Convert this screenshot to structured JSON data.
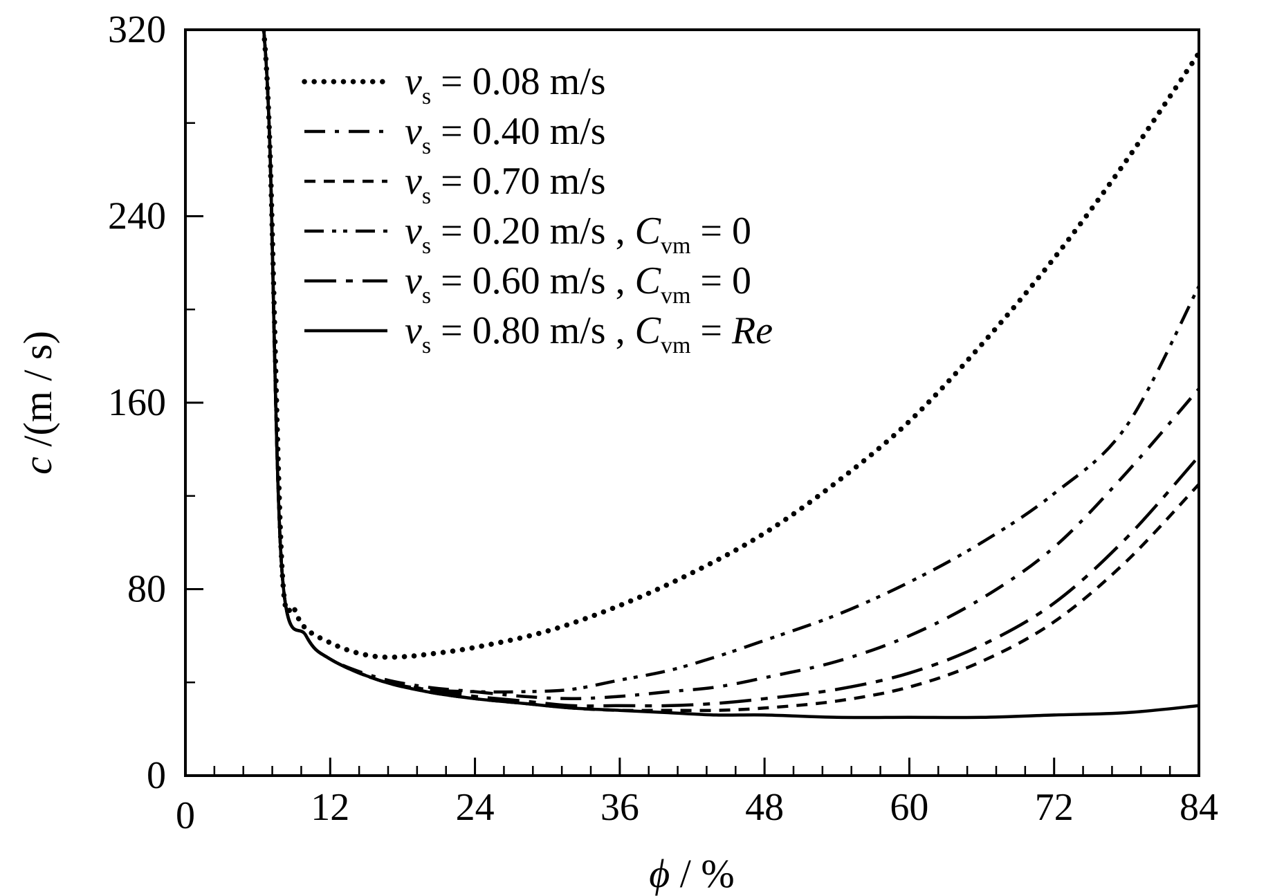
{
  "chart_data": {
    "type": "line",
    "xlabel": {
      "symbol": "ϕ",
      "unit": " / %"
    },
    "ylabel": {
      "symbol": "c",
      "unit": " /(m / s)"
    },
    "xlim": [
      0,
      84
    ],
    "ylim": [
      0,
      320
    ],
    "x_ticks": [
      0,
      12,
      24,
      36,
      48,
      60,
      72,
      84
    ],
    "y_ticks": [
      0,
      80,
      160,
      240,
      320
    ],
    "x_tick_labels": [
      "0",
      "12",
      "24",
      "36",
      "48",
      "60",
      "72",
      "84"
    ],
    "y_tick_labels": [
      "0",
      "80",
      "160",
      "240",
      "320"
    ],
    "x_minor_step": 2.4,
    "y_minor_step": 40,
    "legend_position": "top-left",
    "series": [
      {
        "label": {
          "v": "v",
          "sub": "s",
          "eq": " = 0.08 m/s",
          "extra": ""
        },
        "style": "dotted",
        "points": [
          [
            6.5,
            320
          ],
          [
            7,
            270
          ],
          [
            8,
            90
          ],
          [
            9,
            72
          ],
          [
            10,
            63
          ],
          [
            12,
            57
          ],
          [
            14,
            53
          ],
          [
            16,
            51
          ],
          [
            18,
            51
          ],
          [
            20,
            52
          ],
          [
            24,
            55
          ],
          [
            30,
            62
          ],
          [
            36,
            73
          ],
          [
            42,
            87
          ],
          [
            48,
            104
          ],
          [
            54,
            126
          ],
          [
            60,
            152
          ],
          [
            66,
            185
          ],
          [
            72,
            222
          ],
          [
            78,
            264
          ],
          [
            84,
            310
          ]
        ]
      },
      {
        "label": {
          "v": "v",
          "sub": "s",
          "eq": " = 0.40 m/s",
          "extra": ""
        },
        "style": "dashdot",
        "points": [
          [
            6.5,
            320
          ],
          [
            7,
            270
          ],
          [
            8,
            88
          ],
          [
            10,
            60
          ],
          [
            12,
            50
          ],
          [
            16,
            42
          ],
          [
            20,
            38
          ],
          [
            24,
            36
          ],
          [
            28,
            34
          ],
          [
            32,
            33
          ],
          [
            36,
            34
          ],
          [
            40,
            36
          ],
          [
            44,
            38
          ],
          [
            48,
            42
          ],
          [
            54,
            49
          ],
          [
            60,
            60
          ],
          [
            66,
            76
          ],
          [
            72,
            98
          ],
          [
            78,
            130
          ],
          [
            84,
            166
          ]
        ]
      },
      {
        "label": {
          "v": "v",
          "sub": "s",
          "eq": " = 0.70 m/s",
          "extra": ""
        },
        "style": "dashed",
        "points": [
          [
            6.5,
            320
          ],
          [
            7,
            270
          ],
          [
            8,
            88
          ],
          [
            10,
            60
          ],
          [
            12,
            50
          ],
          [
            16,
            41
          ],
          [
            20,
            36
          ],
          [
            24,
            33
          ],
          [
            28,
            31
          ],
          [
            32,
            29
          ],
          [
            36,
            28
          ],
          [
            40,
            28
          ],
          [
            44,
            28
          ],
          [
            48,
            29
          ],
          [
            54,
            32
          ],
          [
            60,
            38
          ],
          [
            66,
            49
          ],
          [
            72,
            66
          ],
          [
            78,
            92
          ],
          [
            84,
            125
          ]
        ]
      },
      {
        "label": {
          "v": "v",
          "sub": "s",
          "eq": " = 0.20 m/s",
          "extra": " , C",
          "extra_sub": "vm",
          "extra_eq": " = 0",
          "extra_ital": ""
        },
        "style": "dashdotdot",
        "points": [
          [
            6.5,
            320
          ],
          [
            7,
            270
          ],
          [
            8,
            88
          ],
          [
            10,
            60
          ],
          [
            12,
            50
          ],
          [
            16,
            41
          ],
          [
            20,
            37
          ],
          [
            24,
            36
          ],
          [
            28,
            36
          ],
          [
            32,
            37
          ],
          [
            36,
            41
          ],
          [
            40,
            45
          ],
          [
            44,
            51
          ],
          [
            48,
            58
          ],
          [
            54,
            69
          ],
          [
            60,
            83
          ],
          [
            66,
            100
          ],
          [
            72,
            121
          ],
          [
            78,
            150
          ],
          [
            84,
            210
          ]
        ]
      },
      {
        "label": {
          "v": "v",
          "sub": "s",
          "eq": " = 0.60 m/s",
          "extra": " , C",
          "extra_sub": "vm",
          "extra_eq": " = 0",
          "extra_ital": ""
        },
        "style": "longdashdot",
        "points": [
          [
            6.5,
            320
          ],
          [
            7,
            270
          ],
          [
            8,
            88
          ],
          [
            10,
            60
          ],
          [
            12,
            50
          ],
          [
            16,
            41
          ],
          [
            20,
            37
          ],
          [
            24,
            34
          ],
          [
            28,
            32
          ],
          [
            32,
            30
          ],
          [
            36,
            30
          ],
          [
            40,
            30
          ],
          [
            44,
            31
          ],
          [
            48,
            33
          ],
          [
            54,
            37
          ],
          [
            60,
            44
          ],
          [
            66,
            56
          ],
          [
            72,
            74
          ],
          [
            78,
            102
          ],
          [
            84,
            137
          ]
        ]
      },
      {
        "label": {
          "v": "v",
          "sub": "s",
          "eq": " = 0.80 m/s",
          "extra": " , C",
          "extra_sub": "vm",
          "extra_eq": " = ",
          "extra_ital": "Re"
        },
        "style": "solid",
        "points": [
          [
            6.5,
            320
          ],
          [
            7,
            270
          ],
          [
            8,
            88
          ],
          [
            10,
            60
          ],
          [
            12,
            50
          ],
          [
            16,
            41
          ],
          [
            20,
            36
          ],
          [
            24,
            33
          ],
          [
            28,
            31
          ],
          [
            32,
            29
          ],
          [
            36,
            28
          ],
          [
            40,
            27
          ],
          [
            44,
            26
          ],
          [
            48,
            26
          ],
          [
            54,
            25
          ],
          [
            60,
            25
          ],
          [
            66,
            25
          ],
          [
            72,
            26
          ],
          [
            78,
            27
          ],
          [
            84,
            30
          ]
        ]
      }
    ]
  }
}
